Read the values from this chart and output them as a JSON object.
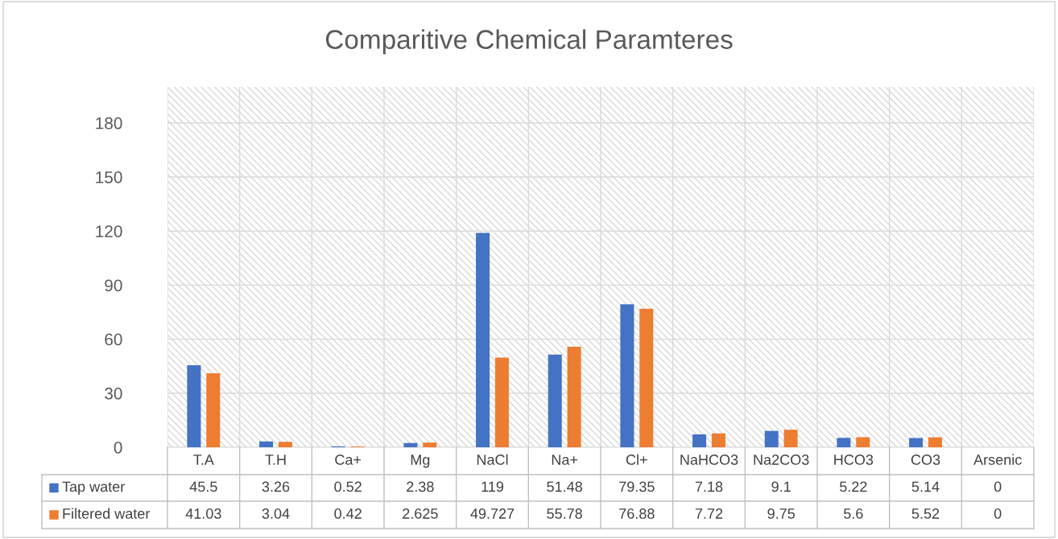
{
  "chart_data": {
    "type": "bar",
    "title": "Comparitive Chemical Paramteres",
    "categories": [
      "T.A",
      "T.H",
      "Ca+",
      "Mg",
      "NaCl",
      "Na+",
      "Cl+",
      "NaHCO3",
      "Na2CO3",
      "HCO3",
      "CO3",
      "Arsenic"
    ],
    "series": [
      {
        "name": "Tap water",
        "color": "#4472c4",
        "values": [
          45.5,
          3.26,
          0.52,
          2.38,
          119,
          51.48,
          79.35,
          7.18,
          9.1,
          5.22,
          5.14,
          0
        ]
      },
      {
        "name": "Filtered water",
        "color": "#ed7d31",
        "values": [
          41.03,
          3.04,
          0.42,
          2.625,
          49.727,
          55.78,
          76.88,
          7.72,
          9.75,
          5.6,
          5.52,
          0
        ]
      }
    ],
    "ylim": [
      0,
      200
    ],
    "yticks": [
      0,
      30,
      60,
      90,
      120,
      150,
      180
    ],
    "grid": true,
    "data_labels": true,
    "legend": "bottom"
  }
}
